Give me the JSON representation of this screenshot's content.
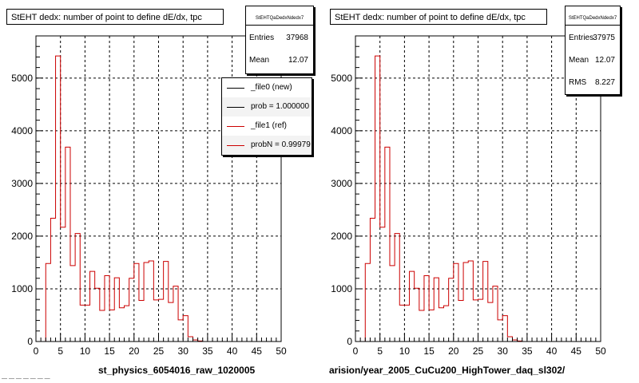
{
  "panels": [
    {
      "title": "StEHT dedx: number of point to define dE/dx, tpc",
      "stats": {
        "name": "StEHTQaDedxNdedx7",
        "rows": [
          {
            "label": "Entries",
            "value": "37968"
          },
          {
            "label": "Mean",
            "value": "12.07"
          }
        ]
      },
      "legend": [
        {
          "text": "_file0 (new)",
          "color": "#000000"
        },
        {
          "text": "prob = 1.000000",
          "color": "#000000"
        },
        {
          "text": "_file1 (ref)",
          "color": "#cc0000"
        },
        {
          "text": "probN = 0.99979",
          "color": "#cc0000"
        }
      ],
      "footer": "st_physics_6054016_raw_1020005"
    },
    {
      "title": "StEHT dedx: number of point to define dE/dx, tpc",
      "stats": {
        "name": "StEHTQaDedxNdedx7",
        "rows": [
          {
            "label": "Entries",
            "value": "37975"
          },
          {
            "label": "Mean",
            "value": "12.07"
          },
          {
            "label": "RMS",
            "value": "8.227"
          }
        ]
      },
      "footer": "arision/year_2005_CuCu200_HighTower_daq_sl302/"
    }
  ],
  "stamp": "— — — — — — —",
  "chart_data": [
    {
      "type": "line",
      "title": "StEHT dedx: number of point to define dE/dx, tpc",
      "xlim": [
        0,
        50
      ],
      "ylim": [
        0,
        5800
      ],
      "x_ticks": [
        0,
        5,
        10,
        15,
        20,
        25,
        30,
        35,
        40,
        45,
        50
      ],
      "y_ticks": [
        0,
        1000,
        2000,
        3000,
        4000,
        5000
      ],
      "grid": true,
      "legend_position": "top-right",
      "bin_width": 1,
      "series": [
        {
          "name": "_file1 (ref)",
          "color": "#cc0000",
          "x": [
            0,
            1,
            2,
            3,
            4,
            5,
            6,
            7,
            8,
            9,
            10,
            11,
            12,
            13,
            14,
            15,
            16,
            17,
            18,
            19,
            20,
            21,
            22,
            23,
            24,
            25,
            26,
            27,
            28,
            29,
            30,
            31,
            32,
            33,
            34,
            35,
            36,
            37,
            38,
            39,
            40,
            41,
            42,
            43,
            44,
            45,
            46,
            47,
            48,
            49
          ],
          "values": [
            0,
            0,
            1480,
            2340,
            5420,
            2170,
            3690,
            1440,
            2050,
            690,
            690,
            1330,
            1010,
            590,
            1250,
            600,
            1210,
            640,
            680,
            1200,
            1480,
            780,
            1500,
            1530,
            790,
            800,
            1520,
            740,
            1050,
            410,
            490,
            90,
            30,
            10,
            0,
            0,
            0,
            0,
            0,
            0,
            0,
            0,
            0,
            0,
            0,
            0,
            0,
            0,
            0,
            0
          ]
        }
      ]
    },
    {
      "type": "line",
      "title": "StEHT dedx: number of point to define dE/dx, tpc",
      "xlim": [
        0,
        50
      ],
      "ylim": [
        0,
        5800
      ],
      "x_ticks": [
        0,
        5,
        10,
        15,
        20,
        25,
        30,
        35,
        40,
        45,
        50
      ],
      "y_ticks": [
        0,
        1000,
        2000,
        3000,
        4000,
        5000
      ],
      "grid": true,
      "bin_width": 1,
      "series": [
        {
          "color": "#cc0000",
          "x": [
            0,
            1,
            2,
            3,
            4,
            5,
            6,
            7,
            8,
            9,
            10,
            11,
            12,
            13,
            14,
            15,
            16,
            17,
            18,
            19,
            20,
            21,
            22,
            23,
            24,
            25,
            26,
            27,
            28,
            29,
            30,
            31,
            32,
            33,
            34,
            35,
            36,
            37,
            38,
            39,
            40,
            41,
            42,
            43,
            44,
            45,
            46,
            47,
            48,
            49
          ],
          "values": [
            0,
            0,
            1480,
            2340,
            5420,
            2170,
            3690,
            1440,
            2050,
            690,
            690,
            1330,
            1010,
            590,
            1250,
            600,
            1210,
            640,
            680,
            1200,
            1480,
            780,
            1500,
            1530,
            790,
            800,
            1520,
            740,
            1050,
            410,
            490,
            90,
            30,
            10,
            0,
            0,
            0,
            0,
            0,
            0,
            0,
            0,
            0,
            0,
            0,
            0,
            0,
            0,
            0,
            0
          ]
        }
      ]
    }
  ]
}
